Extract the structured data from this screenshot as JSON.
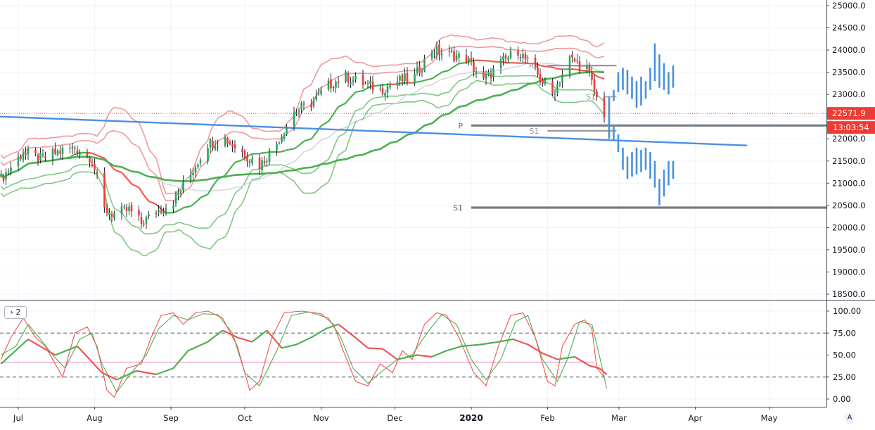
{
  "chart_data": [
    {
      "type": "candlestick",
      "ylim": [
        18300,
        25150
      ],
      "y_ticks": [
        "25000.0",
        "24500.0",
        "24000.0",
        "23500.0",
        "23000.0",
        "22500.0",
        "22000.0",
        "21500.0",
        "21000.0",
        "20500.0",
        "20000.0",
        "19500.0",
        "19000.0",
        "18500.0"
      ],
      "x_labels": [
        "Jul",
        "Aug",
        "Sep",
        "Oct",
        "Nov",
        "Dec",
        "2020",
        "Feb",
        "Mar",
        "Apr",
        "May"
      ],
      "last_price": "22571.9",
      "countdown": "13:03:54",
      "close_anchors": [
        [
          "2019-06-24",
          21100
        ],
        [
          "2019-07-03",
          21700
        ],
        [
          "2019-07-10",
          21550
        ],
        [
          "2019-07-17",
          21700
        ],
        [
          "2019-07-24",
          21800
        ],
        [
          "2019-07-31",
          21550
        ],
        [
          "2019-08-05",
          20400
        ],
        [
          "2019-08-09",
          20300
        ],
        [
          "2019-08-15",
          20400
        ],
        [
          "2019-08-20",
          20100
        ],
        [
          "2019-08-27",
          20400
        ],
        [
          "2019-09-02",
          20600
        ],
        [
          "2019-09-09",
          21200
        ],
        [
          "2019-09-16",
          21900
        ],
        [
          "2019-09-23",
          22000
        ],
        [
          "2019-09-30",
          21700
        ],
        [
          "2019-10-07",
          21400
        ],
        [
          "2019-10-14",
          21900
        ],
        [
          "2019-10-21",
          22600
        ],
        [
          "2019-10-28",
          22800
        ],
        [
          "2019-11-04",
          23200
        ],
        [
          "2019-11-11",
          23400
        ],
        [
          "2019-11-18",
          23250
        ],
        [
          "2019-11-25",
          23100
        ],
        [
          "2019-12-02",
          23300
        ],
        [
          "2019-12-09",
          23400
        ],
        [
          "2019-12-16",
          24000
        ],
        [
          "2019-12-23",
          23900
        ],
        [
          "2019-12-30",
          23800
        ],
        [
          "2020-01-06",
          23300
        ],
        [
          "2020-01-13",
          23700
        ],
        [
          "2020-01-20",
          24000
        ],
        [
          "2020-01-27",
          23500
        ],
        [
          "2020-02-03",
          23000
        ],
        [
          "2020-02-10",
          23800
        ],
        [
          "2020-02-17",
          23600
        ],
        [
          "2020-02-21",
          22900
        ],
        [
          "2020-02-24",
          22570
        ]
      ],
      "bollinger_bands": {
        "upper_color": "#ef9a9a",
        "lower_color": "#81c784",
        "basis_color": "#ff5252"
      },
      "moving_average_200_color": "#4caf50",
      "trendline": {
        "from": [
          "2019-06-24",
          22500
        ],
        "to": [
          "2020-04-22",
          21850
        ],
        "color": "#4a90e2"
      },
      "pivot_levels": [
        {
          "label": "P",
          "price": 22300,
          "from": "2020-01-01",
          "to": "2020-05-31",
          "color": "#787b86"
        },
        {
          "label": "S1",
          "price": 20450,
          "from": "2020-01-01",
          "to": "2020-05-31",
          "color": "#787b86"
        },
        {
          "label": "R1",
          "price": 23650,
          "from": "2020-02-01",
          "to": "2020-02-29",
          "color": "#9598a1"
        },
        {
          "label": "S1",
          "price": 22180,
          "from": "2020-02-01",
          "to": "2020-02-29",
          "color": "#9598a1"
        },
        {
          "label": "S1",
          "price": 22950,
          "from": "2020-02-24",
          "to": "2020-02-29",
          "color": "#b2b5be"
        }
      ],
      "projection_bars": {
        "color": "#4a90e2",
        "upper": [
          [
            22600,
            22950
          ],
          [
            22850,
            23100
          ],
          [
            23050,
            23500
          ],
          [
            23100,
            23600
          ],
          [
            23000,
            23550
          ],
          [
            22900,
            23400
          ],
          [
            22700,
            23300
          ],
          [
            22750,
            23400
          ],
          [
            22900,
            23300
          ],
          [
            23100,
            23600
          ],
          [
            23300,
            24150
          ],
          [
            23150,
            23900
          ],
          [
            23100,
            23700
          ],
          [
            23000,
            23500
          ],
          [
            23150,
            23650
          ]
        ],
        "lower": [
          [
            22000,
            22650
          ],
          [
            21950,
            22300
          ],
          [
            21700,
            22100
          ],
          [
            21300,
            21800
          ],
          [
            21100,
            21600
          ],
          [
            21150,
            21700
          ],
          [
            21200,
            21800
          ],
          [
            21250,
            21750
          ],
          [
            21300,
            21800
          ],
          [
            21100,
            21700
          ],
          [
            20900,
            21500
          ],
          [
            20500,
            21100
          ],
          [
            20700,
            21300
          ],
          [
            20950,
            21500
          ],
          [
            21100,
            21500
          ]
        ]
      }
    },
    {
      "type": "line",
      "ylim": [
        -8,
        106
      ],
      "y_ticks": [
        "100.00",
        "75.00",
        "50.00",
        "25.00",
        "0.00"
      ],
      "dashed_levels": [
        75,
        25
      ],
      "mid_level": 42,
      "series_colors": {
        "k": "#ef5350",
        "d": "#4caf50",
        "slow": "#4caf50",
        "slow_red": "#ef5350"
      },
      "k_anchors": [
        [
          "2019-06-24",
          45
        ],
        [
          "2019-06-28",
          70
        ],
        [
          "2019-07-03",
          92
        ],
        [
          "2019-07-08",
          70
        ],
        [
          "2019-07-12",
          60
        ],
        [
          "2019-07-16",
          40
        ],
        [
          "2019-07-19",
          25
        ],
        [
          "2019-07-24",
          75
        ],
        [
          "2019-07-29",
          82
        ],
        [
          "2019-08-02",
          60
        ],
        [
          "2019-08-06",
          10
        ],
        [
          "2019-08-09",
          2
        ],
        [
          "2019-08-14",
          35
        ],
        [
          "2019-08-20",
          40
        ],
        [
          "2019-08-24",
          70
        ],
        [
          "2019-08-28",
          95
        ],
        [
          "2019-09-02",
          98
        ],
        [
          "2019-09-06",
          85
        ],
        [
          "2019-09-11",
          98
        ],
        [
          "2019-09-16",
          100
        ],
        [
          "2019-09-22",
          92
        ],
        [
          "2019-09-28",
          60
        ],
        [
          "2019-10-03",
          10
        ],
        [
          "2019-10-07",
          20
        ],
        [
          "2019-10-12",
          70
        ],
        [
          "2019-10-17",
          98
        ],
        [
          "2019-10-24",
          100
        ],
        [
          "2019-11-01",
          97
        ],
        [
          "2019-11-06",
          85
        ],
        [
          "2019-11-10",
          55
        ],
        [
          "2019-11-15",
          20
        ],
        [
          "2019-11-20",
          15
        ],
        [
          "2019-11-25",
          40
        ],
        [
          "2019-11-30",
          30
        ],
        [
          "2019-12-04",
          55
        ],
        [
          "2019-12-08",
          45
        ],
        [
          "2019-12-13",
          85
        ],
        [
          "2019-12-18",
          98
        ],
        [
          "2019-12-22",
          95
        ],
        [
          "2019-12-27",
          70
        ],
        [
          "2020-01-02",
          30
        ],
        [
          "2020-01-07",
          15
        ],
        [
          "2020-01-12",
          60
        ],
        [
          "2020-01-17",
          95
        ],
        [
          "2020-01-22",
          98
        ],
        [
          "2020-01-27",
          70
        ],
        [
          "2020-02-01",
          20
        ],
        [
          "2020-02-04",
          15
        ],
        [
          "2020-02-07",
          60
        ],
        [
          "2020-02-12",
          85
        ],
        [
          "2020-02-16",
          90
        ],
        [
          "2020-02-19",
          80
        ],
        [
          "2020-02-21",
          35
        ],
        [
          "2020-02-24",
          25
        ]
      ],
      "d_anchors": [
        [
          "2019-06-24",
          50
        ],
        [
          "2019-06-30",
          60
        ],
        [
          "2019-07-05",
          85
        ],
        [
          "2019-07-10",
          68
        ],
        [
          "2019-07-15",
          50
        ],
        [
          "2019-07-20",
          35
        ],
        [
          "2019-07-26",
          68
        ],
        [
          "2019-07-31",
          75
        ],
        [
          "2019-08-04",
          40
        ],
        [
          "2019-08-10",
          8
        ],
        [
          "2019-08-16",
          30
        ],
        [
          "2019-08-22",
          50
        ],
        [
          "2019-08-27",
          80
        ],
        [
          "2019-09-02",
          95
        ],
        [
          "2019-09-08",
          90
        ],
        [
          "2019-09-14",
          97
        ],
        [
          "2019-09-20",
          96
        ],
        [
          "2019-09-26",
          75
        ],
        [
          "2019-10-01",
          30
        ],
        [
          "2019-10-07",
          15
        ],
        [
          "2019-10-14",
          55
        ],
        [
          "2019-10-20",
          95
        ],
        [
          "2019-10-27",
          99
        ],
        [
          "2019-11-04",
          92
        ],
        [
          "2019-11-09",
          70
        ],
        [
          "2019-11-14",
          35
        ],
        [
          "2019-11-20",
          18
        ],
        [
          "2019-11-26",
          32
        ],
        [
          "2019-12-02",
          45
        ],
        [
          "2019-12-08",
          50
        ],
        [
          "2019-12-14",
          75
        ],
        [
          "2019-12-20",
          96
        ],
        [
          "2019-12-26",
          85
        ],
        [
          "2020-01-01",
          45
        ],
        [
          "2020-01-07",
          22
        ],
        [
          "2020-01-13",
          45
        ],
        [
          "2020-01-19",
          88
        ],
        [
          "2020-01-24",
          95
        ],
        [
          "2020-01-30",
          45
        ],
        [
          "2020-02-05",
          20
        ],
        [
          "2020-02-09",
          45
        ],
        [
          "2020-02-14",
          88
        ],
        [
          "2020-02-19",
          85
        ],
        [
          "2020-02-22",
          50
        ],
        [
          "2020-02-25",
          12
        ]
      ],
      "slow_anchors": [
        [
          "2019-06-24",
          40
        ],
        [
          "2019-07-05",
          68
        ],
        [
          "2019-07-16",
          50
        ],
        [
          "2019-07-25",
          60
        ],
        [
          "2019-08-04",
          30
        ],
        [
          "2019-08-10",
          22
        ],
        [
          "2019-08-18",
          32
        ],
        [
          "2019-08-26",
          28
        ],
        [
          "2019-09-02",
          35
        ],
        [
          "2019-09-08",
          55
        ],
        [
          "2019-09-16",
          65
        ],
        [
          "2019-09-22",
          78
        ],
        [
          "2019-09-28",
          70
        ],
        [
          "2019-10-04",
          65
        ],
        [
          "2019-10-10",
          78
        ],
        [
          "2019-10-16",
          58
        ],
        [
          "2019-10-22",
          62
        ],
        [
          "2019-10-28",
          70
        ],
        [
          "2019-11-03",
          80
        ],
        [
          "2019-11-08",
          85
        ],
        [
          "2019-11-14",
          72
        ],
        [
          "2019-11-20",
          58
        ],
        [
          "2019-11-26",
          57
        ],
        [
          "2019-12-02",
          45
        ],
        [
          "2019-12-10",
          50
        ],
        [
          "2019-12-16",
          48
        ],
        [
          "2019-12-22",
          55
        ],
        [
          "2019-12-28",
          60
        ],
        [
          "2020-01-05",
          62
        ],
        [
          "2020-01-12",
          65
        ],
        [
          "2020-01-18",
          68
        ],
        [
          "2020-01-24",
          62
        ],
        [
          "2020-01-30",
          52
        ],
        [
          "2020-02-05",
          45
        ],
        [
          "2020-02-12",
          48
        ],
        [
          "2020-02-18",
          38
        ],
        [
          "2020-02-22",
          35
        ],
        [
          "2020-02-25",
          28
        ]
      ]
    }
  ],
  "controls": {
    "pane_toggle": "› 2",
    "scale_mode": "A"
  }
}
